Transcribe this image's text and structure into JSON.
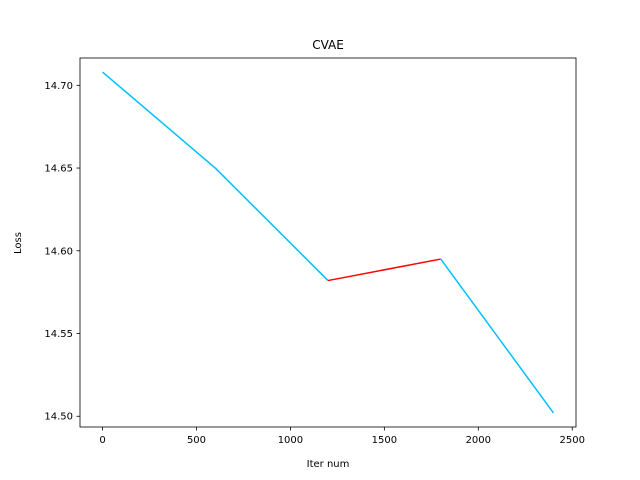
{
  "chart_data": {
    "type": "line",
    "title": "CVAE",
    "xlabel": "Iter num",
    "ylabel": "Loss",
    "xlim": [
      -120,
      2520
    ],
    "ylim": [
      14.4935,
      14.7165
    ],
    "xticks": [
      0,
      500,
      1000,
      1500,
      2000,
      2500
    ],
    "xtick_labels": [
      "0",
      "500",
      "1000",
      "1500",
      "2000",
      "2500"
    ],
    "yticks": [
      14.5,
      14.55,
      14.6,
      14.65,
      14.7
    ],
    "ytick_labels": [
      "14.50",
      "14.55",
      "14.60",
      "14.65",
      "14.70"
    ],
    "grid": false,
    "legend": "none",
    "segments": [
      {
        "color": "#00bfff",
        "x": [
          0,
          600,
          1200
        ],
        "y": [
          14.708,
          14.65,
          14.582
        ]
      },
      {
        "color": "#ff0000",
        "x": [
          1200,
          1800
        ],
        "y": [
          14.582,
          14.595
        ]
      },
      {
        "color": "#00bfff",
        "x": [
          1800,
          2400
        ],
        "y": [
          14.595,
          14.502
        ]
      }
    ]
  }
}
